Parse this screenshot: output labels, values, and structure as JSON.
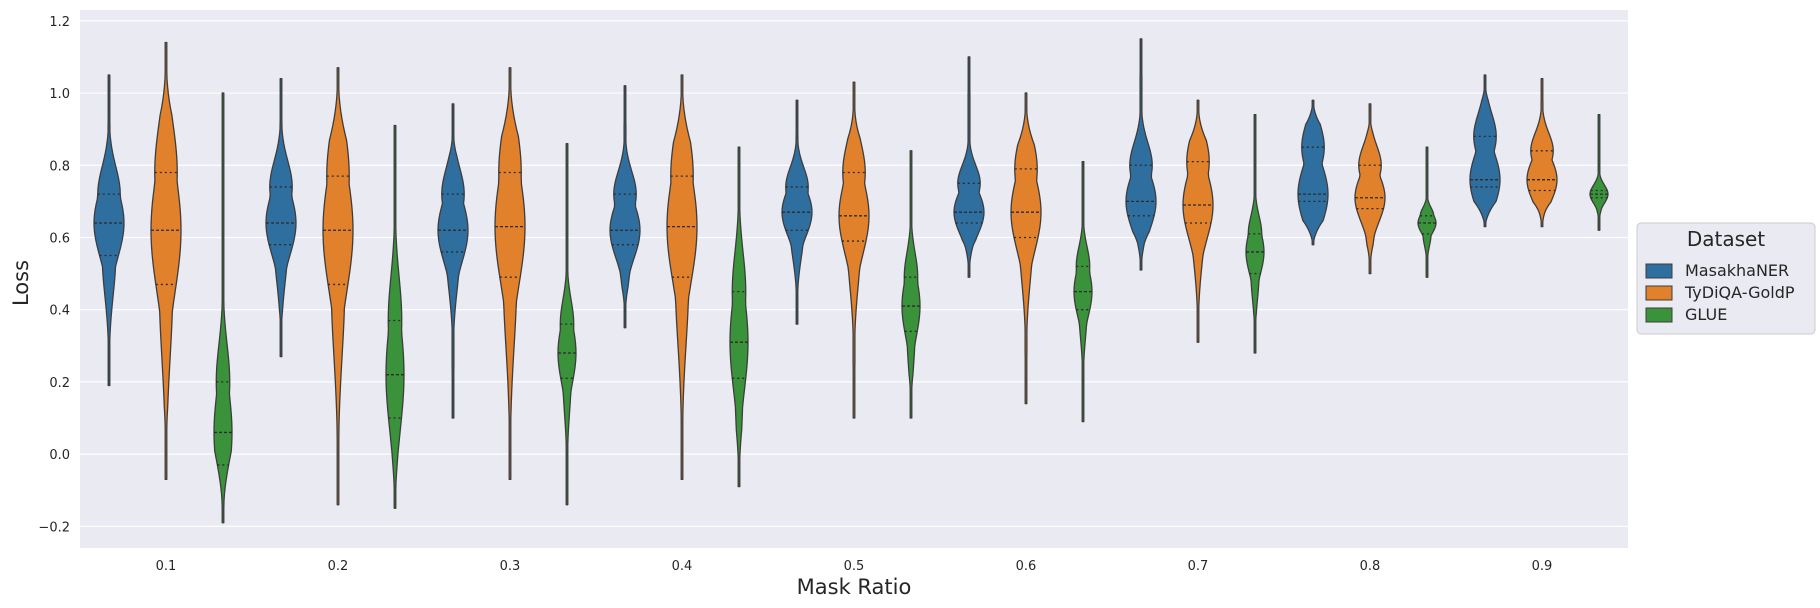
{
  "chart_data": {
    "type": "violin",
    "xlabel": "Mask Ratio",
    "ylabel": "Loss",
    "ylim": [
      -0.26,
      1.23
    ],
    "yticks": [
      "−0.2",
      "0.0",
      "0.2",
      "0.4",
      "0.6",
      "0.8",
      "1.0",
      "1.2"
    ],
    "ytick_values": [
      -0.2,
      0.0,
      0.2,
      0.4,
      0.6,
      0.8,
      1.0,
      1.2
    ],
    "categories": [
      "0.1",
      "0.2",
      "0.3",
      "0.4",
      "0.5",
      "0.6",
      "0.7",
      "0.8",
      "0.9"
    ],
    "grid": true,
    "background_color": "#eaeaf2",
    "legend": {
      "title": "Dataset",
      "placement": "right"
    },
    "series": [
      {
        "name": "MasakhaNER",
        "color": "#2f6f9f",
        "violins": [
          {
            "min": 0.19,
            "max": 1.05,
            "q1": 0.55,
            "median": 0.64,
            "q3": 0.72
          },
          {
            "min": 0.27,
            "max": 1.04,
            "q1": 0.58,
            "median": 0.64,
            "q3": 0.74
          },
          {
            "min": 0.1,
            "max": 0.97,
            "q1": 0.56,
            "median": 0.62,
            "q3": 0.72
          },
          {
            "min": 0.35,
            "max": 1.02,
            "q1": 0.58,
            "median": 0.62,
            "q3": 0.72
          },
          {
            "min": 0.36,
            "max": 0.98,
            "q1": 0.62,
            "median": 0.67,
            "q3": 0.74
          },
          {
            "min": 0.49,
            "max": 1.1,
            "q1": 0.64,
            "median": 0.67,
            "q3": 0.75
          },
          {
            "min": 0.51,
            "max": 1.15,
            "q1": 0.66,
            "median": 0.7,
            "q3": 0.8
          },
          {
            "min": 0.58,
            "max": 0.98,
            "q1": 0.7,
            "median": 0.72,
            "q3": 0.85
          },
          {
            "min": 0.63,
            "max": 1.05,
            "q1": 0.74,
            "median": 0.76,
            "q3": 0.88
          }
        ]
      },
      {
        "name": "TyDiQA-GoldP",
        "color": "#e1812c",
        "violins": [
          {
            "min": -0.07,
            "max": 1.14,
            "q1": 0.47,
            "median": 0.62,
            "q3": 0.78
          },
          {
            "min": -0.14,
            "max": 1.07,
            "q1": 0.47,
            "median": 0.62,
            "q3": 0.77
          },
          {
            "min": -0.07,
            "max": 1.07,
            "q1": 0.49,
            "median": 0.63,
            "q3": 0.78
          },
          {
            "min": -0.07,
            "max": 1.05,
            "q1": 0.49,
            "median": 0.63,
            "q3": 0.77
          },
          {
            "min": 0.1,
            "max": 1.03,
            "q1": 0.59,
            "median": 0.66,
            "q3": 0.78
          },
          {
            "min": 0.14,
            "max": 1.0,
            "q1": 0.6,
            "median": 0.67,
            "q3": 0.79
          },
          {
            "min": 0.31,
            "max": 0.98,
            "q1": 0.64,
            "median": 0.69,
            "q3": 0.81
          },
          {
            "min": 0.5,
            "max": 0.97,
            "q1": 0.68,
            "median": 0.71,
            "q3": 0.8
          },
          {
            "min": 0.63,
            "max": 1.04,
            "q1": 0.73,
            "median": 0.76,
            "q3": 0.84
          }
        ]
      },
      {
        "name": "GLUE",
        "color": "#3a923a",
        "violins": [
          {
            "min": -0.19,
            "max": 1.0,
            "q1": -0.03,
            "median": 0.06,
            "q3": 0.2
          },
          {
            "min": -0.15,
            "max": 0.91,
            "q1": 0.1,
            "median": 0.22,
            "q3": 0.37
          },
          {
            "min": -0.14,
            "max": 0.86,
            "q1": 0.21,
            "median": 0.28,
            "q3": 0.36
          },
          {
            "min": -0.09,
            "max": 0.85,
            "q1": 0.21,
            "median": 0.31,
            "q3": 0.45
          },
          {
            "min": 0.1,
            "max": 0.84,
            "q1": 0.34,
            "median": 0.41,
            "q3": 0.49
          },
          {
            "min": 0.09,
            "max": 0.81,
            "q1": 0.4,
            "median": 0.45,
            "q3": 0.52
          },
          {
            "min": 0.28,
            "max": 0.94,
            "q1": 0.5,
            "median": 0.56,
            "q3": 0.61
          },
          {
            "min": 0.49,
            "max": 0.85,
            "q1": 0.61,
            "median": 0.64,
            "q3": 0.66
          },
          {
            "min": 0.62,
            "max": 0.94,
            "q1": 0.71,
            "median": 0.72,
            "q3": 0.73
          }
        ]
      }
    ]
  }
}
